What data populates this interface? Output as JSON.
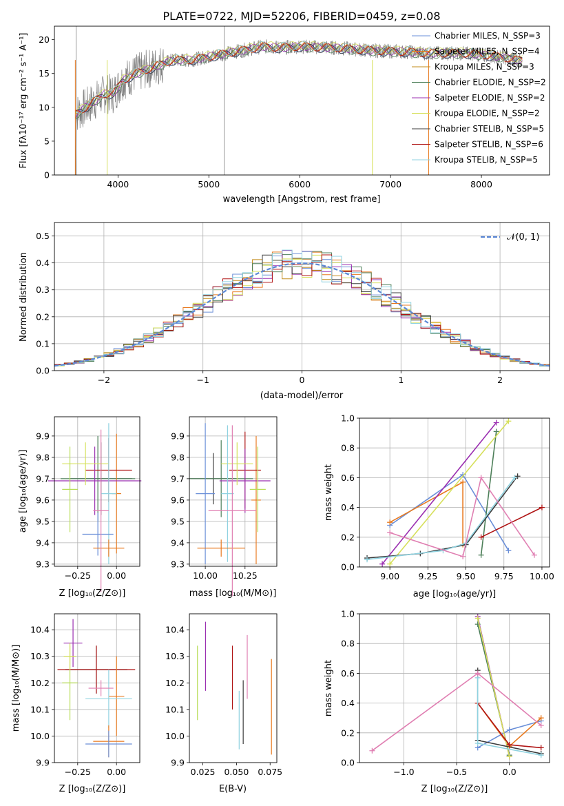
{
  "colors": {
    "grid": "#b0b0b0",
    "series": [
      "#6a8fd8",
      "#e8791e",
      "#c28b1a",
      "#4d7f59",
      "#9b2fb1",
      "#d6e05a",
      "#3d3d3d",
      "#b01515",
      "#8fd2e0"
    ],
    "extra_pink": "#e07fb2",
    "extra_lime": "#b8dd58",
    "spectrum_data": "#7f7f7f",
    "normal": "#5b88d6"
  },
  "chart_data": [
    {
      "type": "line",
      "title": "PLATE=0722, MJD=52206, FIBERID=0459, z=0.08",
      "xlabel": "wavelength [Angstrom, rest frame]",
      "ylabel": "Flux [fλ10⁻¹⁷ erg cm⁻² s⁻¹ A⁻¹]",
      "xlim": [
        3300,
        8750
      ],
      "ylim": [
        0,
        22
      ],
      "xticks": [
        4000,
        5000,
        6000,
        7000,
        8000
      ],
      "yticks": [
        0,
        5,
        10,
        15,
        20
      ],
      "xtick_labels": [
        "4000",
        "5000",
        "6000",
        "7000",
        "8000"
      ],
      "ytick_labels": [
        "0",
        "5",
        "10",
        "15",
        "20"
      ],
      "legend": [
        "Chabrier MILES, N_SSP=3",
        "Salpeter MILES, N_SSP=4",
        "Kroupa MILES, N_SSP=3",
        "Chabrier ELODIE, N_SSP=2",
        "Salpeter ELODIE, N_SSP=2",
        "Kroupa ELODIE, N_SSP=2",
        "Chabrier STELIB, N_SSP=5",
        "Salpeter STELIB, N_SSP=6",
        "Kroupa STELIB, N_SSP=5"
      ],
      "legend_placement": "lower-right",
      "grid": false,
      "series": [
        {
          "name": "data",
          "x": [
            3530,
            3700,
            3850,
            3950,
            4050,
            4200,
            4400,
            4600,
            4800,
            5000,
            5200,
            5400,
            5600,
            5800,
            6000,
            6200,
            6400,
            6600,
            6800,
            7000,
            7200,
            7400,
            7600,
            7800,
            8000,
            8200,
            8400
          ],
          "values": [
            9,
            10.5,
            12,
            12,
            14,
            15,
            16,
            17,
            17,
            17.5,
            18,
            18.5,
            19,
            18.8,
            19,
            18.9,
            18.8,
            18.6,
            18.4,
            18.3,
            18.2,
            18,
            18,
            18,
            17.8,
            17.5,
            17
          ]
        }
      ]
    },
    {
      "type": "line",
      "xlabel": "(data-model)/error",
      "ylabel": "Normed distribution",
      "xlim": [
        -2.5,
        2.5
      ],
      "ylim": [
        0,
        0.55
      ],
      "xticks": [
        -2,
        -1,
        0,
        1,
        2
      ],
      "yticks": [
        0,
        0.1,
        0.2,
        0.3,
        0.4,
        0.5
      ],
      "xtick_labels": [
        "−2",
        "−1",
        "0",
        "1",
        "2"
      ],
      "ytick_labels": [
        "0.0",
        "0.1",
        "0.2",
        "0.3",
        "0.4",
        "0.5"
      ],
      "legend": [
        "𝒩(0, 1)"
      ],
      "legend_placement": "top-right",
      "grid": true
    },
    {
      "type": "scatter",
      "xlabel": "Z [log₁₀(Z/Z⊙)]",
      "ylabel": "age  [log₁₀(age/yr)]",
      "xlim": [
        -0.4,
        0.15
      ],
      "ylim": [
        9.29,
        9.99
      ],
      "xticks": [
        -0.25,
        0.0
      ],
      "yticks": [
        9.3,
        9.4,
        9.5,
        9.6,
        9.7,
        9.8,
        9.9
      ],
      "xtick_labels": [
        "−0.25",
        "0.00"
      ],
      "ytick_labels": [
        "9.3",
        "9.4",
        "9.5",
        "9.6",
        "9.7",
        "9.8",
        "9.9"
      ],
      "grid": true
    },
    {
      "type": "scatter",
      "xlabel": "mass [log₁₀(M/M⊙)]",
      "xlim": [
        9.9,
        10.45
      ],
      "ylim": [
        9.29,
        9.99
      ],
      "xticks": [
        10.0,
        10.25
      ],
      "yticks": [
        9.3,
        9.4,
        9.5,
        9.6,
        9.7,
        9.8,
        9.9
      ],
      "xtick_labels": [
        "10.00",
        "10.25"
      ],
      "ytick_labels": [
        "9.3",
        "9.4",
        "9.5",
        "9.6",
        "9.7",
        "9.8",
        "9.9"
      ],
      "grid": true
    },
    {
      "type": "line",
      "xlabel": "age  [log₁₀(age/yr)]",
      "ylabel": "mass weight",
      "xlim": [
        8.8,
        10.05
      ],
      "ylim": [
        0,
        1
      ],
      "xticks": [
        9.0,
        9.25,
        9.5,
        9.75,
        10.0
      ],
      "yticks": [
        0,
        0.2,
        0.4,
        0.6,
        0.8,
        1.0
      ],
      "xtick_labels": [
        "9.00",
        "9.25",
        "9.50",
        "9.75",
        "10.00"
      ],
      "ytick_labels": [
        "0.0",
        "0.2",
        "0.4",
        "0.6",
        "0.8",
        "1.0"
      ],
      "grid": true
    },
    {
      "type": "scatter",
      "xlabel": "Z [log₁₀(Z/Z⊙)]",
      "ylabel": "mass [log₁₀(M/M⊙)]",
      "xlim": [
        -0.4,
        0.15
      ],
      "ylim": [
        9.9,
        10.46
      ],
      "xticks": [
        -0.25,
        0.0
      ],
      "yticks": [
        9.9,
        10.0,
        10.1,
        10.2,
        10.3,
        10.4
      ],
      "xtick_labels": [
        "−0.25",
        "0.00"
      ],
      "ytick_labels": [
        "9.9",
        "10.0",
        "10.1",
        "10.2",
        "10.3",
        "10.4"
      ],
      "grid": true
    },
    {
      "type": "scatter",
      "xlabel": "E(B-V)",
      "xlim": [
        0.015,
        0.08
      ],
      "ylim": [
        9.9,
        10.46
      ],
      "xticks": [
        0.025,
        0.05,
        0.075
      ],
      "yticks": [
        9.9,
        10.0,
        10.1,
        10.2,
        10.3,
        10.4
      ],
      "xtick_labels": [
        "0.025",
        "0.050",
        "0.075"
      ],
      "ytick_labels": [
        "9.9",
        "10.0",
        "10.1",
        "10.2",
        "10.3",
        "10.4"
      ],
      "grid": false
    },
    {
      "type": "line",
      "xlabel": "Z [log₁₀(Z/Z⊙)]",
      "ylabel": "mass weight",
      "xlim": [
        -1.42,
        0.38
      ],
      "ylim": [
        0,
        1
      ],
      "xticks": [
        -1.0,
        -0.5,
        0.0
      ],
      "yticks": [
        0,
        0.2,
        0.4,
        0.6,
        0.8,
        1.0
      ],
      "xtick_labels": [
        "−1.0",
        "−0.5",
        "0.0"
      ],
      "ytick_labels": [
        "0.0",
        "0.2",
        "0.4",
        "0.6",
        "0.8",
        "1.0"
      ],
      "grid": true
    }
  ]
}
